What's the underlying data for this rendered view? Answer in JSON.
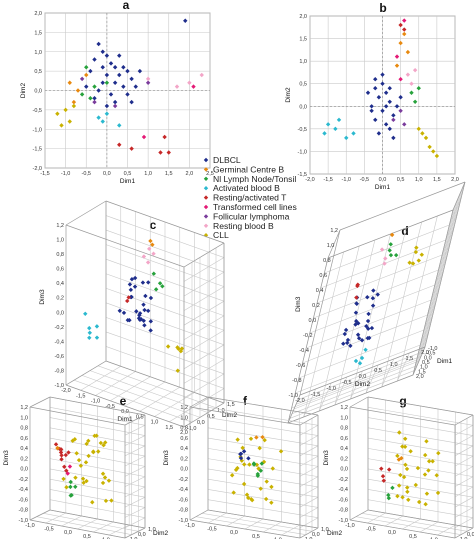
{
  "colors": {
    "DLBCL": "#1f2e8c",
    "Germinal Centre B": "#e8890f",
    "Nl Lymph Node/Tonsil": "#27a23c",
    "Activated blood B": "#2bb9cf",
    "Resting/activated T": "#c62828",
    "Transformed cell lines": "#e41a76",
    "Follicular lymphoma": "#7a3c9c",
    "Resting blood B": "#f3a6c8",
    "CLL": "#c9b200"
  },
  "legend": {
    "items": [
      {
        "label": "DLBCL",
        "color": "#1f2e8c"
      },
      {
        "label": "Germinal Centre B",
        "color": "#e8890f"
      },
      {
        "label": "Nl Lymph Node/Tonsil",
        "color": "#27a23c"
      },
      {
        "label": "Activated blood B",
        "color": "#2bb9cf"
      },
      {
        "label": "Resting/activated T",
        "color": "#c62828"
      },
      {
        "label": "Transformed cell lines",
        "color": "#e41a76"
      },
      {
        "label": "Follicular lymphoma",
        "color": "#7a3c9c"
      },
      {
        "label": "Resting blood B",
        "color": "#f3a6c8"
      },
      {
        "label": "CLL",
        "color": "#c9b200"
      }
    ]
  },
  "chart_data": [
    {
      "panel": "a",
      "type": "scatter",
      "xlabel": "Dim1",
      "ylabel": "Dim2",
      "xlim": [
        -1.5,
        2.5
      ],
      "ylim": [
        -2.0,
        2.0
      ],
      "xticks": [
        "-1,5",
        "-1,0",
        "-0,5",
        "0,0",
        "0,5",
        "1,0",
        "1,5",
        "2,0",
        "2,5"
      ],
      "yticks": [
        "-2,0",
        "-1,5",
        "-1,0",
        "-0,5",
        "0,0",
        "0,5",
        "1,0",
        "1,5",
        "2,0"
      ],
      "grid": true,
      "series": [
        {
          "name": "DLBCL",
          "points": [
            [
              -0.2,
              1.2
            ],
            [
              -0.1,
              1.0
            ],
            [
              0.0,
              0.9
            ],
            [
              -0.3,
              0.8
            ],
            [
              0.1,
              0.7
            ],
            [
              0.2,
              0.6
            ],
            [
              -0.4,
              0.5
            ],
            [
              0.3,
              0.4
            ],
            [
              0.0,
              0.4
            ],
            [
              -0.1,
              0.2
            ],
            [
              0.4,
              0.1
            ],
            [
              -0.2,
              0.0
            ],
            [
              0.5,
              -0.1
            ],
            [
              0.1,
              -0.1
            ],
            [
              -0.3,
              -0.2
            ],
            [
              0.2,
              -0.3
            ],
            [
              0.6,
              0.3
            ],
            [
              0.7,
              0.1
            ],
            [
              0.5,
              0.5
            ],
            [
              -0.5,
              0.1
            ],
            [
              0.0,
              -0.4
            ],
            [
              1.9,
              1.8
            ],
            [
              0.3,
              0.9
            ],
            [
              0.4,
              0.6
            ],
            [
              -0.1,
              0.6
            ],
            [
              0.2,
              0.2
            ],
            [
              0.6,
              -0.3
            ],
            [
              0.8,
              0.5
            ]
          ]
        },
        {
          "name": "Germinal Centre B",
          "points": [
            [
              -0.9,
              0.2
            ],
            [
              -0.7,
              0.0
            ],
            [
              -0.8,
              -0.3
            ],
            [
              -0.5,
              0.4
            ]
          ]
        },
        {
          "name": "Nl Lymph Node/Tonsil",
          "points": [
            [
              -0.6,
              -0.1
            ],
            [
              -0.4,
              -0.2
            ],
            [
              -0.3,
              0.1
            ],
            [
              0.0,
              0.2
            ],
            [
              -0.5,
              0.6
            ]
          ]
        },
        {
          "name": "Activated blood B",
          "points": [
            [
              -0.2,
              -0.7
            ],
            [
              -0.1,
              -0.8
            ],
            [
              0.0,
              -0.6
            ],
            [
              0.3,
              -0.9
            ]
          ]
        },
        {
          "name": "Resting/activated T",
          "points": [
            [
              0.3,
              -1.4
            ],
            [
              1.3,
              -1.6
            ],
            [
              1.5,
              -1.6
            ],
            [
              1.4,
              -1.2
            ],
            [
              0.6,
              -1.5
            ]
          ]
        },
        {
          "name": "Transformed cell lines",
          "points": [
            [
              2.1,
              0.1
            ],
            [
              0.9,
              -1.2
            ]
          ]
        },
        {
          "name": "Follicular lymphoma",
          "points": [
            [
              -0.3,
              -0.3
            ],
            [
              0.2,
              -0.4
            ],
            [
              1.0,
              0.2
            ],
            [
              -0.6,
              0.3
            ]
          ]
        },
        {
          "name": "Resting blood B",
          "points": [
            [
              2.3,
              0.4
            ],
            [
              1.7,
              0.1
            ],
            [
              1.0,
              0.3
            ],
            [
              2.0,
              0.2
            ]
          ]
        },
        {
          "name": "CLL",
          "points": [
            [
              -1.0,
              -0.5
            ],
            [
              -0.9,
              -0.8
            ],
            [
              -1.2,
              -0.6
            ],
            [
              -0.8,
              -0.4
            ],
            [
              -1.1,
              -0.9
            ]
          ]
        }
      ]
    },
    {
      "panel": "b",
      "type": "scatter",
      "xlabel": "Dim1",
      "ylabel": "Dim2",
      "xlim": [
        -2.0,
        2.0
      ],
      "ylim": [
        -1.5,
        2.0
      ],
      "xticks": [
        "-2,0",
        "-1,5",
        "-1,0",
        "-0,5",
        "0,0",
        "0,5",
        "1,0",
        "1,5",
        "2,0"
      ],
      "yticks": [
        "-1,5",
        "-1,0",
        "-0,5",
        "0,0",
        "0,5",
        "1,0",
        "1,5",
        "2,0"
      ],
      "grid": true,
      "series": [
        {
          "name": "DLBCL",
          "points": [
            [
              -0.2,
              0.6
            ],
            [
              0.0,
              0.5
            ],
            [
              0.1,
              0.3
            ],
            [
              -0.1,
              0.2
            ],
            [
              0.2,
              0.1
            ],
            [
              -0.3,
              0.0
            ],
            [
              0.0,
              -0.1
            ],
            [
              0.3,
              -0.2
            ],
            [
              -0.2,
              -0.3
            ],
            [
              0.1,
              -0.4
            ],
            [
              0.4,
              0.0
            ],
            [
              -0.4,
              0.3
            ],
            [
              0.2,
              0.4
            ],
            [
              -0.1,
              -0.6
            ],
            [
              0.3,
              -0.7
            ],
            [
              0.0,
              0.7
            ],
            [
              -0.3,
              -0.1
            ],
            [
              0.5,
              0.2
            ],
            [
              0.1,
              0.0
            ],
            [
              -0.2,
              0.4
            ],
            [
              0.2,
              -0.5
            ]
          ]
        },
        {
          "name": "Germinal Centre B",
          "points": [
            [
              0.6,
              1.6
            ],
            [
              0.5,
              1.4
            ],
            [
              0.7,
              1.2
            ],
            [
              0.4,
              0.9
            ]
          ]
        },
        {
          "name": "Nl Lymph Node/Tonsil",
          "points": [
            [
              0.8,
              0.3
            ],
            [
              1.0,
              0.4
            ],
            [
              0.9,
              0.1
            ]
          ]
        },
        {
          "name": "Activated blood B",
          "points": [
            [
              -1.5,
              -0.4
            ],
            [
              -1.3,
              -0.5
            ],
            [
              -1.6,
              -0.6
            ],
            [
              -1.2,
              -0.3
            ],
            [
              -1.0,
              -0.7
            ],
            [
              -0.8,
              -0.6
            ]
          ]
        },
        {
          "name": "Resting/activated T",
          "points": [
            [
              0.6,
              1.7
            ],
            [
              0.5,
              1.8
            ]
          ]
        },
        {
          "name": "Transformed cell lines",
          "points": [
            [
              0.6,
              1.9
            ],
            [
              0.4,
              1.1
            ],
            [
              0.5,
              0.6
            ]
          ]
        },
        {
          "name": "Follicular lymphoma",
          "points": [
            [
              0.3,
              -0.3
            ],
            [
              0.6,
              -0.4
            ],
            [
              0.5,
              -0.1
            ]
          ]
        },
        {
          "name": "Resting blood B",
          "points": [
            [
              0.8,
              0.5
            ],
            [
              0.7,
              0.7
            ],
            [
              0.9,
              0.8
            ]
          ]
        },
        {
          "name": "CLL",
          "points": [
            [
              1.0,
              -0.5
            ],
            [
              1.2,
              -0.7
            ],
            [
              1.3,
              -0.9
            ],
            [
              1.4,
              -1.0
            ],
            [
              1.5,
              -1.1
            ],
            [
              1.1,
              -0.6
            ]
          ]
        }
      ]
    },
    {
      "panel": "c",
      "type": "scatter3d",
      "xlabel": "Dim1",
      "ylabel": "Dim2",
      "zlabel": "Dim3",
      "zticks": [
        "-1,0",
        "-0,8",
        "-0,6",
        "-0,4",
        "-0,2",
        "0,0",
        "0,2",
        "0,4",
        "0,6",
        "0,8",
        "1,0",
        "1,2"
      ],
      "xticks": [
        "-2,0",
        "-1,5",
        "-1,0",
        "-0,5",
        "0,0",
        "0,5",
        "1,0",
        "1,5",
        "2,0"
      ],
      "yticks": [
        "-1,0",
        "0,0",
        "0,5",
        "1,0",
        "1,5"
      ]
    },
    {
      "panel": "d",
      "type": "scatter3d",
      "xlabel": "Dim2",
      "ylabel": "Dim1",
      "zlabel": "Dim3",
      "zticks": [
        "-1,0",
        "-0,8",
        "-0,6",
        "-0,4",
        "-0,2",
        "0,0",
        "0,2",
        "0,4",
        "0,6",
        "0,8",
        "1,0",
        "1,2"
      ],
      "xticks": [
        "-2,0",
        "-1,5",
        "-1,0",
        "-0,5",
        "0,0",
        "0,5",
        "1,0",
        "1,5",
        "2,0"
      ],
      "yticks": [
        "-1,0",
        "-0,5",
        "0,0",
        "0,5",
        "1,0",
        "1,5",
        "2,0"
      ]
    },
    {
      "panel": "e",
      "type": "scatter3d",
      "xlabel": "Dim1",
      "ylabel": "Dim2",
      "zlabel": "Dim3",
      "zticks": [
        "-1,0",
        "-0,8",
        "-0,6",
        "-0,4",
        "-0,2",
        "0,0",
        "0,2",
        "0,4",
        "0,6",
        "0,8",
        "1,0",
        "1,2"
      ],
      "xticks": [
        "-1,0",
        "-0,5",
        "0,0",
        "0,5",
        "1,0",
        "1,5"
      ],
      "yticks": [
        "-1,0",
        "0,0",
        "1,0"
      ]
    },
    {
      "panel": "f",
      "type": "scatter3d",
      "xlabel": "Dim1",
      "ylabel": "Dim2",
      "zlabel": "Dim3",
      "zticks": [
        "-1,0",
        "-0,8",
        "-0,6",
        "-0,4",
        "-0,2",
        "0,0",
        "0,2",
        "0,4",
        "0,6",
        "0,8",
        "1,0",
        "1,2"
      ],
      "xticks": [
        "-1,0",
        "-0,5",
        "0,0",
        "0,5",
        "1,0",
        "1,5"
      ],
      "yticks": [
        "-1,0",
        "0,0",
        "1,0"
      ]
    },
    {
      "panel": "g",
      "type": "scatter3d",
      "xlabel": "Dim1",
      "ylabel": "Dim2",
      "zlabel": "Dim3",
      "zticks": [
        "-1,0",
        "-0,8",
        "-0,6",
        "-0,4",
        "-0,2",
        "0,0",
        "0,2",
        "0,4",
        "0,6",
        "0,8",
        "1,0",
        "1,2"
      ],
      "xticks": [
        "-1,0",
        "-0,5",
        "0,0",
        "0,5",
        "1,0",
        "1,5"
      ],
      "yticks": [
        "-1,0",
        "0,0",
        "1,0"
      ]
    }
  ]
}
